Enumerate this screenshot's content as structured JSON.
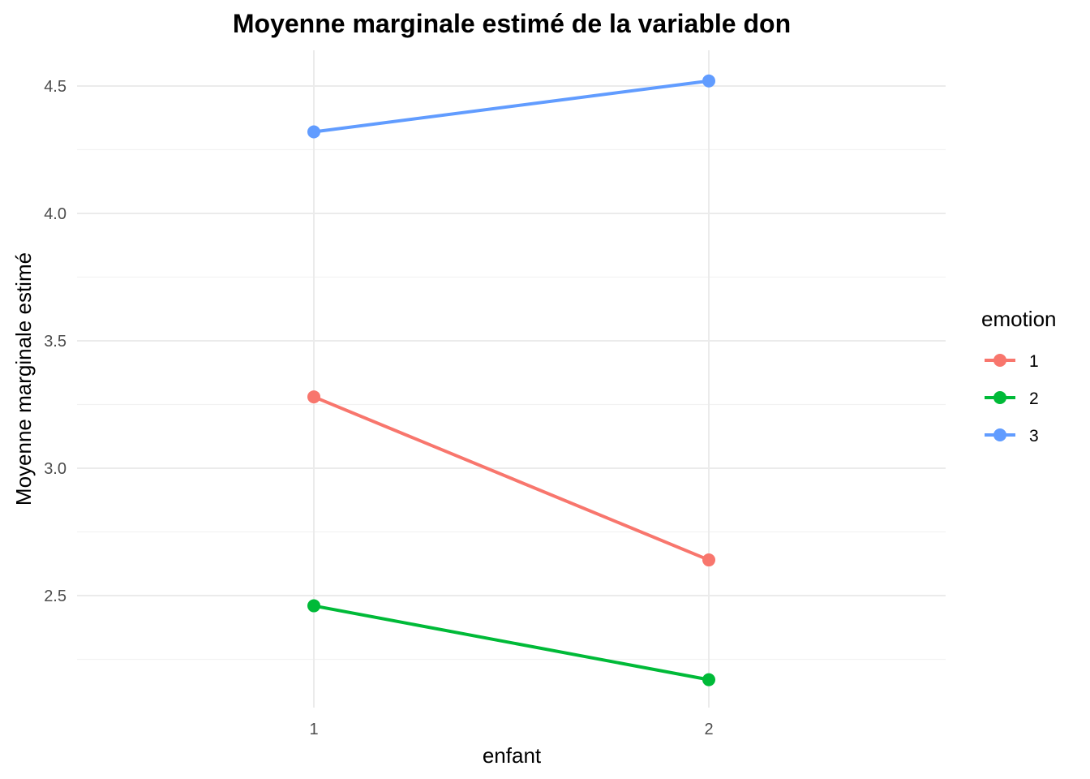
{
  "chart_data": {
    "type": "line",
    "title": "Moyenne marginale estimé de la variable don",
    "xlabel": "enfant",
    "ylabel": "Moyenne marginale estimé",
    "categories": [
      "1",
      "2"
    ],
    "y_ticks": [
      "2.5",
      "3.0",
      "3.5",
      "4.0",
      "4.5"
    ],
    "ylim": [
      2.1,
      4.62
    ],
    "grid": true,
    "legend": {
      "title": "emotion",
      "position": "right"
    },
    "series": [
      {
        "name": "1",
        "color": "#F8766D",
        "values": [
          3.28,
          2.64
        ]
      },
      {
        "name": "2",
        "color": "#00BA38",
        "values": [
          2.46,
          2.17
        ]
      },
      {
        "name": "3",
        "color": "#619CFF",
        "values": [
          4.32,
          4.52
        ]
      }
    ]
  }
}
